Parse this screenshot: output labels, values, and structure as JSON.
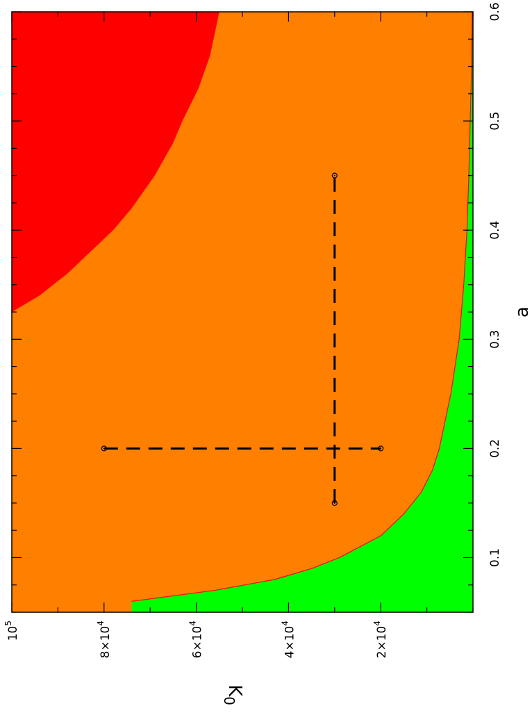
{
  "chart_data": {
    "type": "heatmap",
    "title": "",
    "orientation": "rotated 90° (page viewed sideways)",
    "xlabel": "a",
    "ylabel": "K0",
    "xlim": [
      0.05,
      0.6
    ],
    "ylim": [
      0,
      100000
    ],
    "x_ticks": [
      {
        "value": 0.1,
        "label": "0.1"
      },
      {
        "value": 0.2,
        "label": "0.2"
      },
      {
        "value": 0.3,
        "label": "0.3"
      },
      {
        "value": 0.4,
        "label": "0.4"
      },
      {
        "value": 0.5,
        "label": "0.5"
      },
      {
        "value": 0.6,
        "label": "0.6"
      }
    ],
    "y_ticks": [
      {
        "value": 20000,
        "mantissa": "2×10",
        "exp": "4"
      },
      {
        "value": 40000,
        "mantissa": "4×10",
        "exp": "4"
      },
      {
        "value": 60000,
        "mantissa": "6×10",
        "exp": "4"
      },
      {
        "value": 80000,
        "mantissa": "8×10",
        "exp": "4"
      },
      {
        "value": 100000,
        "mantissa": "10",
        "exp": "5"
      }
    ],
    "regions": [
      {
        "id": "green",
        "color": "#00ff00"
      },
      {
        "id": "orange",
        "color": "#ff8000"
      },
      {
        "id": "red",
        "color": "#ff0000"
      }
    ],
    "boundaries": {
      "green_orange": [
        {
          "a": 0.06,
          "K0": 74000
        },
        {
          "a": 0.07,
          "K0": 56000
        },
        {
          "a": 0.08,
          "K0": 43000
        },
        {
          "a": 0.09,
          "K0": 35000
        },
        {
          "a": 0.1,
          "K0": 29000
        },
        {
          "a": 0.12,
          "K0": 20000
        },
        {
          "a": 0.14,
          "K0": 15000
        },
        {
          "a": 0.16,
          "K0": 11200
        },
        {
          "a": 0.18,
          "K0": 8800
        },
        {
          "a": 0.2,
          "K0": 7300
        },
        {
          "a": 0.25,
          "K0": 4800
        },
        {
          "a": 0.3,
          "K0": 3000
        },
        {
          "a": 0.35,
          "K0": 2000
        },
        {
          "a": 0.4,
          "K0": 1300
        },
        {
          "a": 0.45,
          "K0": 900
        },
        {
          "a": 0.5,
          "K0": 600
        },
        {
          "a": 0.55,
          "K0": 300
        },
        {
          "a": 0.6,
          "K0": 150
        }
      ],
      "orange_red": [
        {
          "a": 0.325,
          "K0": 100000
        },
        {
          "a": 0.34,
          "K0": 94000
        },
        {
          "a": 0.36,
          "K0": 88000
        },
        {
          "a": 0.38,
          "K0": 83000
        },
        {
          "a": 0.4,
          "K0": 78000
        },
        {
          "a": 0.42,
          "K0": 74000
        },
        {
          "a": 0.45,
          "K0": 69000
        },
        {
          "a": 0.48,
          "K0": 65000
        },
        {
          "a": 0.5,
          "K0": 63000
        },
        {
          "a": 0.53,
          "K0": 59500
        },
        {
          "a": 0.56,
          "K0": 57000
        },
        {
          "a": 0.6,
          "K0": 55000
        }
      ]
    },
    "dashed_lines": [
      {
        "from": {
          "a": 0.2,
          "K0": 80000
        },
        "to": {
          "a": 0.2,
          "K0": 20000
        }
      },
      {
        "from": {
          "a": 0.15,
          "K0": 30000
        },
        "to": {
          "a": 0.45,
          "K0": 30000
        }
      }
    ],
    "markers": [
      {
        "a": 0.2,
        "K0": 80000
      },
      {
        "a": 0.2,
        "K0": 20000
      },
      {
        "a": 0.15,
        "K0": 30000
      },
      {
        "a": 0.45,
        "K0": 30000
      }
    ]
  }
}
